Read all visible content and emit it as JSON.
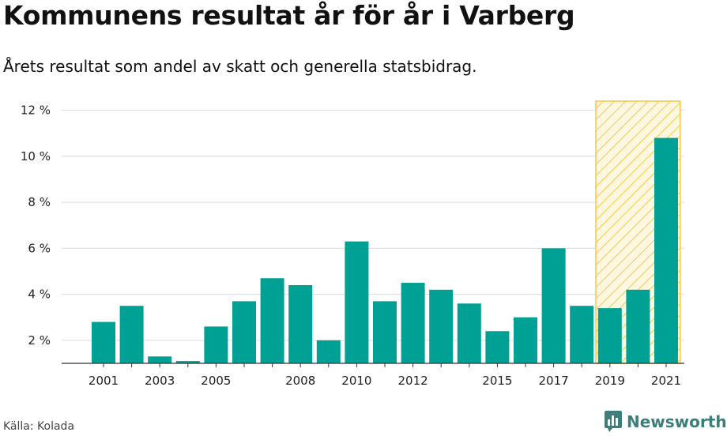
{
  "header": {
    "title": "Kommunens resultat år för år i Varberg",
    "subtitle": "Årets resultat som andel av skatt och generella statsbidrag."
  },
  "footer": {
    "source": "Källa: Kolada",
    "brand": "Newsworthy"
  },
  "colors": {
    "bar": "#00a194",
    "highlight_stroke": "#f5c94a",
    "highlight_fill": "#fff7e0",
    "grid": "#d9d9d9",
    "brand": "#3d7e7a"
  },
  "chart_data": {
    "type": "bar",
    "categories": [
      "2001",
      "2002",
      "2003",
      "2004",
      "2005",
      "2006",
      "2007",
      "2008",
      "2009",
      "2010",
      "2011",
      "2012",
      "2013",
      "2014",
      "2015",
      "2016",
      "2017",
      "2018",
      "2019",
      "2020",
      "2021"
    ],
    "values": [
      2.8,
      3.5,
      1.3,
      1.1,
      2.6,
      3.7,
      4.7,
      4.4,
      2.0,
      6.3,
      3.7,
      4.5,
      4.2,
      3.6,
      2.4,
      3.0,
      6.0,
      3.5,
      3.4,
      4.2,
      10.8
    ],
    "x_tick_labels": [
      "2001",
      "2003",
      "2005",
      "2008",
      "2010",
      "2012",
      "2015",
      "2017",
      "2019",
      "2021"
    ],
    "y_ticks": [
      2,
      4,
      6,
      8,
      10,
      12
    ],
    "y_tick_labels": [
      "2 %",
      "4 %",
      "6 %",
      "8 %",
      "10 %",
      "12 %"
    ],
    "ylim": [
      1,
      12.4
    ],
    "highlight_categories": [
      "2019",
      "2020",
      "2021"
    ],
    "grid": true,
    "xlabel": "",
    "ylabel": ""
  }
}
